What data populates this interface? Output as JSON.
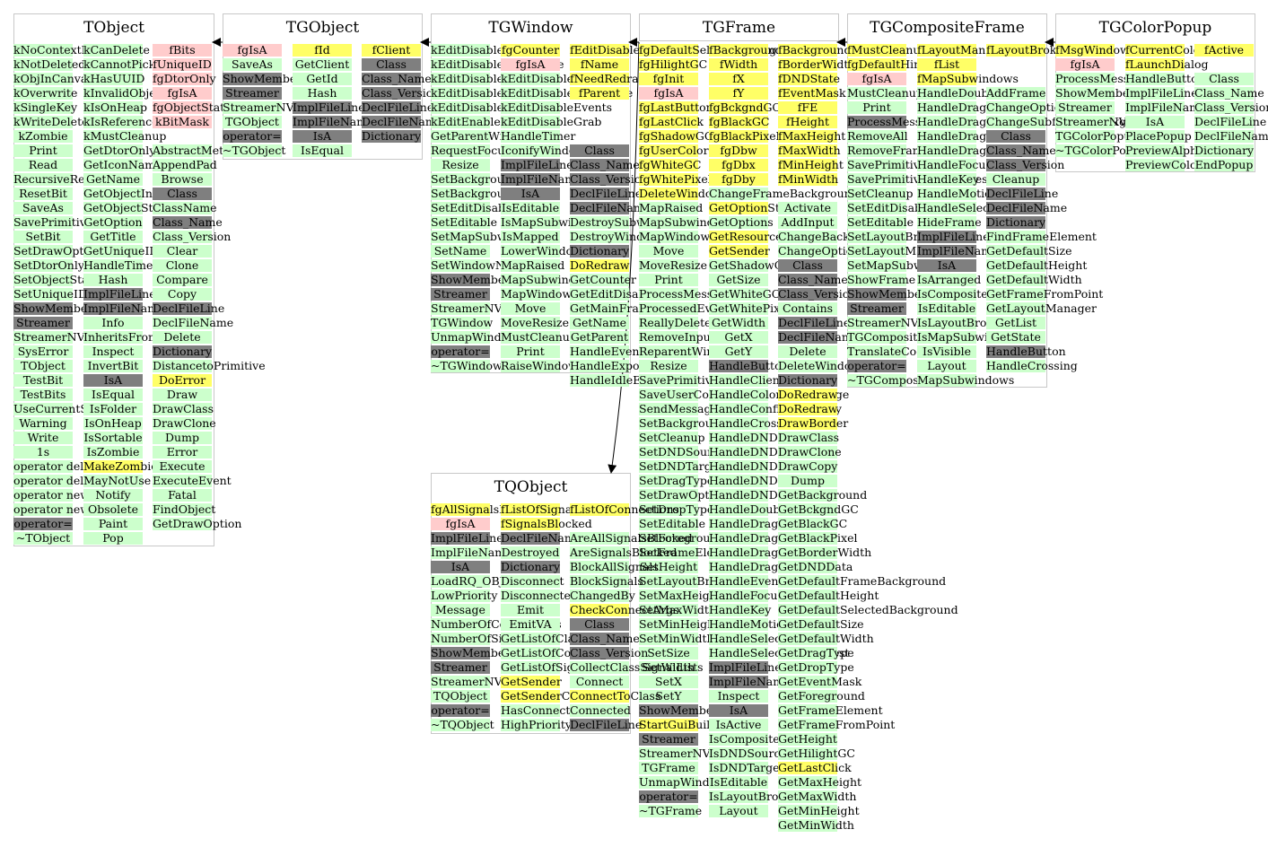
{
  "colors": {
    "method": "#ccffcc",
    "data_member": "#ffff66",
    "base_member": "#ffcccc",
    "inherited": "#7f7f7f",
    "arrow": "#000000",
    "frame": "#c8c8c8"
  },
  "classes": [
    {
      "name": "TObject",
      "columns": [
        [
          "g:kNoContextMenu",
          "g:kNotDeleted",
          "g:kObjInCanvas",
          "g:kOverwrite",
          "g:kSingleKey",
          "g:kWriteDelete",
          "g:kZombie",
          "g:Print",
          "g:Read",
          "g:RecursiveRemove",
          "g:ResetBit",
          "g:SaveAs",
          "g:SavePrimitive",
          "g:SetBit",
          "g:SetDrawOption",
          "g:SetDtorOnly",
          "g:SetObjectStat",
          "g:SetUniqueID",
          "d:ShowMembers",
          "d:Streamer",
          "g:StreamerNVirtual",
          "g:SysError",
          "g:TObject",
          "g:TestBit",
          "g:TestBits",
          "g:UseCurrentStyle",
          "g:Warning",
          "g:Write",
          "g:1s",
          "g:operator delete",
          "g:operator delete[]",
          "g:operator new",
          "g:operator new[]",
          "d:operator=",
          "g:~TObject"
        ],
        [
          "g:kCanDelete",
          "g:kCannotPick",
          "g:kHasUUID",
          "g:kInvalidObject",
          "g:kIsOnHeap",
          "g:kIsReferenced",
          "g:kMustCleanup",
          "g:GetDtorOnly",
          "g:GetIconName",
          "g:GetName",
          "g:GetObjectInfo",
          "g:GetObjectStat",
          "g:GetOption",
          "g:GetTitle",
          "g:GetUniqueID",
          "g:HandleTimer",
          "g:Hash",
          "d:ImplFileLine",
          "d:ImplFileName",
          "g:Info",
          "g:InheritsFrom",
          "g:Inspect",
          "g:InvertBit",
          "d:IsA",
          "g:IsEqual",
          "g:IsFolder",
          "g:IsOnHeap",
          "g:IsSortable",
          "g:IsZombie",
          "y:MakeZombie",
          "g:MayNotUse",
          "g:Notify",
          "g:Obsolete",
          "g:Paint",
          "g:Pop"
        ],
        [
          "p:fBits",
          "p:fUniqueID",
          "p:fgDtorOnly",
          "p:fgIsA",
          "p:fgObjectStat",
          "p:kBitMask",
          "n:",
          "g:AbstractMethod",
          "g:AppendPad",
          "g:Browse",
          "d:Class",
          "g:ClassName",
          "d:Class_Name",
          "g:Class_Version",
          "g:Clear",
          "g:Clone",
          "g:Compare",
          "g:Copy",
          "d:DeclFileLine",
          "g:DeclFileName",
          "g:Delete",
          "d:Dictionary",
          "g:DistancetoPrimitive",
          "y:DoError",
          "g:Draw",
          "g:DrawClass",
          "g:DrawClone",
          "g:Dump",
          "g:Error",
          "g:Execute",
          "g:ExecuteEvent",
          "g:Fatal",
          "g:FindObject",
          "g:GetDrawOption"
        ]
      ]
    },
    {
      "name": "TGObject",
      "columns": [
        [
          "p:fgIsA",
          "g:SaveAs",
          "d:ShowMembers",
          "d:Streamer",
          "g:StreamerNVirtual",
          "g:TGObject",
          "d:operator=",
          "g:~TGObject"
        ],
        [
          "y:fId",
          "g:GetClient",
          "g:GetId",
          "g:Hash",
          "d:ImplFileLine",
          "d:ImplFileName",
          "d:IsA",
          "g:IsEqual"
        ],
        [
          "y:fClient",
          "d:Class",
          "d:Class_Name",
          "d:Class_Version",
          "d:DeclFileLine",
          "d:DeclFileName",
          "d:Dictionary"
        ]
      ]
    },
    {
      "name": "TGWindow",
      "columns": [
        [
          "g:kEditDisableHeight",
          "g:kEditDisableKeyEnable",
          "g:kEditDisableLayout",
          "g:kEditDisableResize",
          "g:kEditDisableWidth",
          "g:kEditEnable",
          "g:GetParentWindow",
          "g:RequestFocus",
          "g:Resize",
          "g:SetBackgroundColor",
          "g:SetBackgroundPixmap",
          "g:SetEditDisabled",
          "g:SetEditable",
          "g:SetMapSubwindows",
          "g:SetName",
          "g:SetWindowName",
          "d:ShowMembers",
          "d:Streamer",
          "g:StreamerNVirtual",
          "g:TGWindow",
          "g:UnmapWindow",
          "d:operator=",
          "g:~TGWindow"
        ],
        [
          "y:fgCounter",
          "p:fgIsA",
          "g:kEditDisable",
          "g:kEditDisableBtnEnable",
          "g:kEditDisableEvents",
          "g:kEditDisableGrab",
          "g:HandleTimer",
          "g:IconifyWindow",
          "d:ImplFileLine",
          "d:ImplFileName",
          "d:IsA",
          "g:IsEditable",
          "g:IsMapSubwindows",
          "g:IsMapped",
          "g:LowerWindow",
          "g:MapRaised",
          "g:MapSubwindows",
          "g:MapWindow",
          "g:Move",
          "g:MoveResize",
          "g:MustCleanup",
          "g:Print",
          "g:RaiseWindow"
        ],
        [
          "y:fEditDisabled",
          "y:fName",
          "y:fNeedRedraw",
          "y:fParent",
          "n:",
          "n:",
          "n:",
          "d:Class",
          "d:Class_Name",
          "d:Class_Version",
          "d:DeclFileLine",
          "d:DeclFileName",
          "g:DestroySubwindows",
          "g:DestroyWindow",
          "d:Dictionary",
          "y:DoRedraw",
          "g:GetCounter",
          "g:GetEditDisabled",
          "g:GetMainFrame",
          "g:GetName",
          "g:GetParent",
          "g:HandleEvent",
          "g:HandleExpose",
          "g:HandleIdleEvent"
        ]
      ]
    },
    {
      "name": "TGFrame",
      "columns": [
        [
          "y:fgDefaultSelectedBackground",
          "y:fgHilightGC",
          "y:fgInit",
          "p:fgIsA",
          "y:fgLastButton",
          "y:fgLastClick",
          "y:fgShadowGC",
          "y:fgUserColor",
          "y:fgWhiteGC",
          "y:fgWhitePixel",
          "y:DeleteWindowCalled",
          "g:MapRaised",
          "g:MapSubwindows",
          "g:MapWindow",
          "g:Move",
          "g:MoveResize",
          "g:Print",
          "g:ProcessMessage",
          "g:ProcessedEvent",
          "g:ReallyDelete",
          "g:RemoveInput",
          "g:ReparentWindow",
          "g:Resize",
          "g:SavePrimitive",
          "g:SaveUserColor",
          "g:SendMessage",
          "g:SetBackgroundColor",
          "g:SetCleanup",
          "g:SetDNDSource",
          "g:SetDNDTarget",
          "g:SetDragType",
          "g:SetDrawOption",
          "g:SetDropType",
          "g:SetEditable",
          "g:SetForegroundColor",
          "g:SetFrameElement",
          "g:SetHeight",
          "g:SetLayoutBroken",
          "g:SetMaxHeight",
          "g:SetMaxWidth",
          "g:SetMinHeight",
          "g:SetMinWidth",
          "g:SetSize",
          "g:SetWidth",
          "g:SetX",
          "g:SetY",
          "d:ShowMembers",
          "y:StartGuiBuilding",
          "d:Streamer",
          "g:StreamerNVirtual",
          "g:TGFrame",
          "g:UnmapWindow",
          "d:operator=",
          "g:~TGFrame"
        ],
        [
          "y:fBackground",
          "y:fWidth",
          "y:fX",
          "y:fY",
          "y:fgBckgndGC",
          "y:fgBlackGC",
          "y:fgBlackPixel",
          "y:fgDbw",
          "y:fgDbx",
          "y:fgDby",
          "g:ChangeFrameBackground",
          "y:GetOptionString",
          "g:GetOptions",
          "y:GetResourcePool",
          "y:GetSender",
          "g:GetShadowGC",
          "g:GetSize",
          "g:GetWhiteGC",
          "g:GetWhitePixel",
          "g:GetWidth",
          "g:GetX",
          "g:GetY",
          "d:HandleButton",
          "g:HandleClientMessage",
          "g:HandleColormapChange",
          "g:HandleConfigureNotify",
          "g:HandleCrossing",
          "g:HandleDNDDrop",
          "g:HandleDNDEnter",
          "g:HandleDNDFinished",
          "g:HandleDNDLeave",
          "g:HandleDNDPosition",
          "g:HandleDoubleClick",
          "g:HandleDragDrop",
          "g:HandleDragEnter",
          "g:HandleDragLeave",
          "g:HandleDragMotion",
          "g:HandleEvent",
          "g:HandleFocusChange",
          "g:HandleKey",
          "g:HandleMotion",
          "g:HandleSelection",
          "g:HandleSelectionRequest",
          "d:ImplFileLine",
          "d:ImplFileName",
          "g:Inspect",
          "d:IsA",
          "g:IsActive",
          "g:IsComposite",
          "g:IsDNDSource",
          "g:IsDNDTarget",
          "g:IsEditable",
          "g:IsLayoutBroken",
          "g:Layout"
        ],
        [
          "y:fBackground",
          "y:fBorderWidth",
          "y:fDNDState",
          "y:fEventMask",
          "y:fFE",
          "y:fHeight",
          "y:fMaxHeight",
          "y:fMaxWidth",
          "y:fMinHeight",
          "y:fMinWidth",
          "n:",
          "g:Activate",
          "g:AddInput",
          "g:ChangeBackground",
          "g:ChangeOptions",
          "d:Class",
          "d:Class_Name",
          "d:Class_Version",
          "g:Contains",
          "d:DeclFileLine",
          "d:DeclFileName",
          "g:Delete",
          "g:DeleteWindow",
          "d:Dictionary",
          "y:DoRedraw",
          "y:DoRedraw",
          "y:DrawBorder",
          "g:DrawClass",
          "g:DrawClone",
          "g:DrawCopy",
          "g:Dump",
          "g:GetBackground",
          "g:GetBckgndGC",
          "g:GetBlackGC",
          "g:GetBlackPixel",
          "g:GetBorderWidth",
          "g:GetDNDData",
          "g:GetDefaultFrameBackground",
          "g:GetDefaultHeight",
          "g:GetDefaultSelectedBackground",
          "g:GetDefaultSize",
          "g:GetDefaultWidth",
          "g:GetDragType",
          "g:GetDropType",
          "g:GetEventMask",
          "g:GetForeground",
          "g:GetFrameElement",
          "g:GetFrameFromPoint",
          "g:GetHeight",
          "g:GetHilightGC",
          "y:GetLastClick",
          "g:GetMaxHeight",
          "g:GetMaxWidth",
          "g:GetMinHeight",
          "g:GetMinWidth"
        ]
      ]
    },
    {
      "name": "TGCompositeFrame",
      "columns": [
        [
          "y:fMustCleanup",
          "y:fgDefaultHints",
          "p:fgIsA",
          "g:MustCleanup",
          "g:Print",
          "d:ProcessMessage",
          "g:RemoveAll",
          "g:RemoveFrame",
          "g:SavePrimitive",
          "g:SavePrimitiveSubframes",
          "g:SetCleanup",
          "g:SetEditDisabled",
          "g:SetEditable",
          "g:SetLayoutBroken",
          "g:SetLayoutManager",
          "g:SetMapSubwindows",
          "g:ShowFrame",
          "d:ShowMembers",
          "d:Streamer",
          "g:StreamerNVirtual",
          "g:TGCompositeFrame",
          "g:TranslateCoordinates",
          "d:operator=",
          "g:~TGCompositeFrame"
        ],
        [
          "y:fLayoutManager",
          "y:fList",
          "y:fMapSubwindows",
          "g:HandleDoubleClick",
          "g:HandleDragDrop",
          "g:HandleDragEnter",
          "g:HandleDragLeave",
          "g:HandleDragMotion",
          "g:HandleFocusChange",
          "g:HandleKey",
          "g:HandleMotion",
          "g:HandleSelection",
          "g:HideFrame",
          "d:ImplFileLine",
          "d:ImplFileName",
          "d:IsA",
          "g:IsArranged",
          "g:IsComposite",
          "g:IsEditable",
          "g:IsLayoutBroken",
          "g:IsMapSubwindows",
          "g:IsVisible",
          "g:Layout",
          "g:MapSubwindows"
        ],
        [
          "y:fLayoutBroken",
          "n:",
          "n:",
          "g:AddFrame",
          "g:ChangeOptions",
          "g:ChangeSubframesBackground",
          "d:Class",
          "d:Class_Name",
          "d:Class_Version",
          "g:Cleanup",
          "d:DeclFileLine",
          "d:DeclFileName",
          "d:Dictionary",
          "g:FindFrameElement",
          "g:GetDefaultSize",
          "g:GetDefaultHeight",
          "g:GetDefaultWidth",
          "g:GetFrameFromPoint",
          "g:GetLayoutManager",
          "g:GetList",
          "g:GetState",
          "d:HandleButton",
          "g:HandleCrossing"
        ]
      ]
    },
    {
      "name": "TGColorPopup",
      "columns": [
        [
          "y:fMsgWindow",
          "p:fgIsA",
          "g:ProcessMessage",
          "g:ShowMembers",
          "g:Streamer",
          "g:StreamerNVirtual",
          "g:TGColorPopup",
          "g:~TGColorPopup"
        ],
        [
          "y:fCurrentColor",
          "y:fLaunchDialog",
          "g:HandleButton",
          "g:ImplFileLine",
          "g:ImplFileName",
          "g:IsA",
          "g:PlacePopup",
          "g:PreviewAlphaColor",
          "g:PreviewColor"
        ],
        [
          "y:fActive",
          "n:",
          "g:Class",
          "g:Class_Name",
          "g:Class_Version",
          "g:DeclFileLine",
          "g:DeclFileName",
          "g:Dictionary",
          "g:EndPopup"
        ]
      ]
    },
    {
      "name": "TQObject",
      "columns": [
        [
          "y:fgAllSignalsBlocked",
          "p:fgIsA",
          "d:ImplFileLine",
          "g:ImplFileName",
          "d:IsA",
          "g:LoadRQ_OBJECT",
          "g:LowPriority",
          "g:Message",
          "g:NumberOfConnections",
          "g:NumberOfSignals",
          "d:ShowMembers",
          "d:Streamer",
          "g:StreamerNVirtual",
          "g:TQObject",
          "d:operator=",
          "g:~TQObject"
        ],
        [
          "y:fListOfSignals",
          "y:fSignalsBlocked",
          "d:DeclFileName",
          "g:Destroyed",
          "d:Dictionary",
          "g:Disconnect",
          "g:Disconnected",
          "g:Emit",
          "g:EmitVA",
          "g:GetListOfClassSignals",
          "g:GetListOfConnections",
          "g:GetListOfSignals",
          "y:GetSender",
          "y:GetSenderClassName",
          "g:HasConnection",
          "g:HighPriority"
        ],
        [
          "y:fListOfConnections",
          "n:",
          "g:AreAllSignalsBlocked",
          "g:AreSignalsBlocked",
          "g:BlockAllSignals",
          "g:BlockSignals",
          "g:ChangedBy",
          "y:CheckConnectArgs",
          "d:Class",
          "d:Class_Name",
          "d:Class_Version",
          "g:CollectClassSignalLists",
          "g:Connect",
          "y:ConnectToClass",
          "g:Connected",
          "d:DeclFileLine"
        ]
      ]
    }
  ]
}
